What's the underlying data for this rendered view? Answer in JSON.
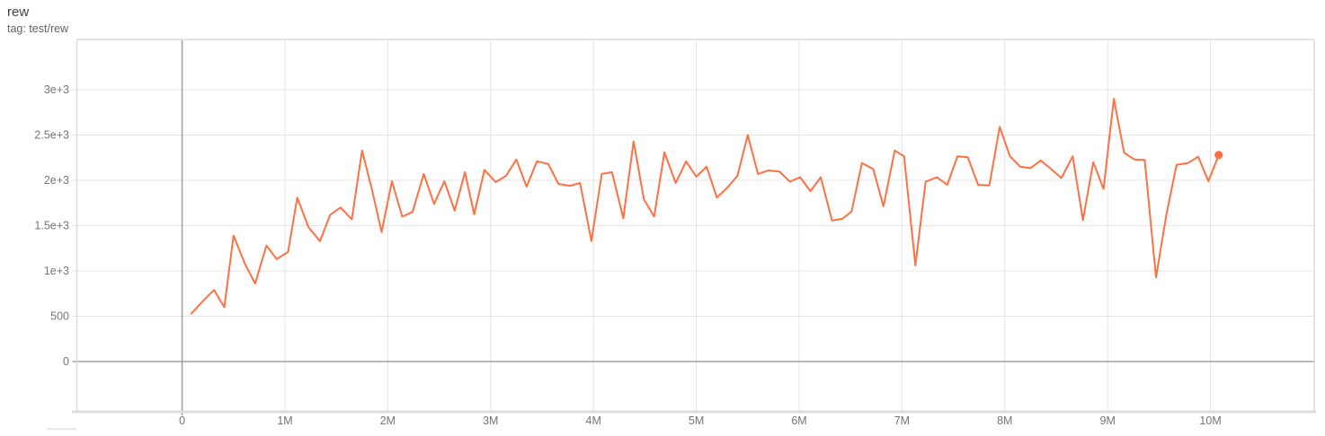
{
  "header": {
    "title": "rew",
    "subtitle": "tag: test/rew"
  },
  "chart_data": {
    "type": "line",
    "title": "rew",
    "legend_tag": "test/rew",
    "grid": true,
    "colors": {
      "series": "#ff7043",
      "grid": "#e4e4e4",
      "frame": "#dcdcdc",
      "zero_line": "#a2a2a2",
      "tick_text": "#757575"
    },
    "x_axis": {
      "unit": "steps",
      "ticks": [
        {
          "label": "0",
          "m": 0
        },
        {
          "label": "1M",
          "m": 1
        },
        {
          "label": "2M",
          "m": 2
        },
        {
          "label": "3M",
          "m": 3
        },
        {
          "label": "4M",
          "m": 4
        },
        {
          "label": "5M",
          "m": 5
        },
        {
          "label": "6M",
          "m": 6
        },
        {
          "label": "7M",
          "m": 7
        },
        {
          "label": "8M",
          "m": 8
        },
        {
          "label": "9M",
          "m": 9
        },
        {
          "label": "10M",
          "m": 10
        }
      ],
      "range_m": [
        -1.03,
        11.0
      ]
    },
    "y_axis": {
      "ticks": [
        {
          "label": "0",
          "v": 0
        },
        {
          "label": "500",
          "v": 500
        },
        {
          "label": "1e+3",
          "v": 1000
        },
        {
          "label": "1.5e+3",
          "v": 1500
        },
        {
          "label": "2e+3",
          "v": 2000
        },
        {
          "label": "2.5e+3",
          "v": 2500
        },
        {
          "label": "3e+3",
          "v": 3000
        }
      ],
      "range": [
        -560,
        3520
      ]
    },
    "series": [
      {
        "name": "test/rew",
        "end_marker": true,
        "points": [
          [
            0.09,
            530
          ],
          [
            0.2,
            665
          ],
          [
            0.31,
            790
          ],
          [
            0.41,
            600
          ],
          [
            0.5,
            1390
          ],
          [
            0.61,
            1080
          ],
          [
            0.71,
            860
          ],
          [
            0.82,
            1280
          ],
          [
            0.92,
            1130
          ],
          [
            1.03,
            1210
          ],
          [
            1.12,
            1810
          ],
          [
            1.23,
            1480
          ],
          [
            1.34,
            1330
          ],
          [
            1.44,
            1620
          ],
          [
            1.54,
            1700
          ],
          [
            1.65,
            1570
          ],
          [
            1.75,
            2330
          ],
          [
            1.85,
            1880
          ],
          [
            1.94,
            1430
          ],
          [
            2.04,
            1990
          ],
          [
            2.14,
            1600
          ],
          [
            2.24,
            1650
          ],
          [
            2.35,
            2070
          ],
          [
            2.45,
            1740
          ],
          [
            2.55,
            1990
          ],
          [
            2.65,
            1665
          ],
          [
            2.75,
            2090
          ],
          [
            2.84,
            1625
          ],
          [
            2.94,
            2115
          ],
          [
            3.05,
            1980
          ],
          [
            3.15,
            2050
          ],
          [
            3.25,
            2230
          ],
          [
            3.35,
            1930
          ],
          [
            3.45,
            2210
          ],
          [
            3.56,
            2180
          ],
          [
            3.66,
            1960
          ],
          [
            3.77,
            1940
          ],
          [
            3.87,
            1970
          ],
          [
            3.98,
            1330
          ],
          [
            4.08,
            2070
          ],
          [
            4.18,
            2090
          ],
          [
            4.29,
            1580
          ],
          [
            4.39,
            2430
          ],
          [
            4.49,
            1790
          ],
          [
            4.59,
            1600
          ],
          [
            4.69,
            2310
          ],
          [
            4.8,
            1970
          ],
          [
            4.9,
            2210
          ],
          [
            5.0,
            2040
          ],
          [
            5.1,
            2150
          ],
          [
            5.2,
            1810
          ],
          [
            5.31,
            1930
          ],
          [
            5.4,
            2050
          ],
          [
            5.5,
            2500
          ],
          [
            5.6,
            2070
          ],
          [
            5.7,
            2110
          ],
          [
            5.81,
            2095
          ],
          [
            5.91,
            1985
          ],
          [
            6.01,
            2035
          ],
          [
            6.11,
            1880
          ],
          [
            6.21,
            2035
          ],
          [
            6.32,
            1555
          ],
          [
            6.42,
            1575
          ],
          [
            6.51,
            1655
          ],
          [
            6.61,
            2190
          ],
          [
            6.72,
            2125
          ],
          [
            6.82,
            1715
          ],
          [
            6.93,
            2330
          ],
          [
            7.02,
            2265
          ],
          [
            7.13,
            1060
          ],
          [
            7.23,
            1985
          ],
          [
            7.34,
            2035
          ],
          [
            7.44,
            1950
          ],
          [
            7.54,
            2265
          ],
          [
            7.64,
            2255
          ],
          [
            7.74,
            1950
          ],
          [
            7.85,
            1945
          ],
          [
            7.95,
            2590
          ],
          [
            8.05,
            2265
          ],
          [
            8.15,
            2150
          ],
          [
            8.25,
            2135
          ],
          [
            8.35,
            2220
          ],
          [
            8.45,
            2125
          ],
          [
            8.55,
            2025
          ],
          [
            8.66,
            2265
          ],
          [
            8.76,
            1560
          ],
          [
            8.86,
            2200
          ],
          [
            8.96,
            1905
          ],
          [
            9.06,
            2900
          ],
          [
            9.16,
            2305
          ],
          [
            9.26,
            2230
          ],
          [
            9.36,
            2225
          ],
          [
            9.47,
            930
          ],
          [
            9.57,
            1615
          ],
          [
            9.67,
            2170
          ],
          [
            9.78,
            2190
          ],
          [
            9.88,
            2260
          ],
          [
            9.98,
            1990
          ],
          [
            10.08,
            2280
          ]
        ]
      }
    ]
  }
}
